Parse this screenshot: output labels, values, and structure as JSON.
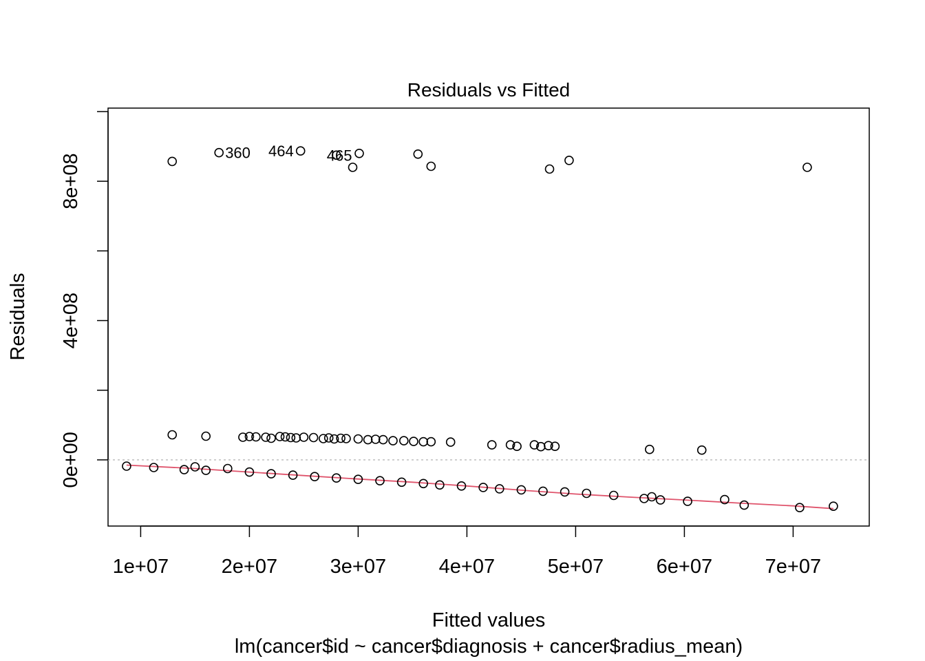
{
  "chart_data": {
    "type": "scatter",
    "title": "Residuals vs Fitted",
    "xlabel": "Fitted values",
    "ylabel": "Residuals",
    "subtitle": "lm(cancer$id ~ cancer$diagnosis + cancer$radius_mean)",
    "xlim": [
      7000000,
      77000000
    ],
    "ylim": [
      -190000000,
      1010000000
    ],
    "x_ticks": [
      10000000,
      20000000,
      30000000,
      40000000,
      50000000,
      60000000,
      70000000
    ],
    "x_tick_labels": [
      "1e+07",
      "2e+07",
      "3e+07",
      "4e+07",
      "5e+07",
      "6e+07",
      "7e+07"
    ],
    "y_ticks": [
      0,
      200000000,
      400000000,
      600000000,
      800000000,
      1000000000
    ],
    "y_tick_labels": [
      "0e+00",
      "",
      "4e+08",
      "",
      "8e+08",
      ""
    ],
    "reference_line_y": 0,
    "outlier_points": [
      {
        "x": 12900000,
        "y": 857000000
      },
      {
        "x": 17200000,
        "y": 882000000,
        "label": "360"
      },
      {
        "x": 24700000,
        "y": 887000000,
        "label": "464"
      },
      {
        "x": 28000000,
        "y": 875000000,
        "label": "465"
      },
      {
        "x": 29500000,
        "y": 840000000
      },
      {
        "x": 30100000,
        "y": 880000000
      },
      {
        "x": 35500000,
        "y": 878000000
      },
      {
        "x": 36700000,
        "y": 843000000
      },
      {
        "x": 47600000,
        "y": 835000000
      },
      {
        "x": 49400000,
        "y": 860000000
      },
      {
        "x": 71300000,
        "y": 840000000
      }
    ],
    "upper_band": [
      {
        "x": 12900000,
        "y": 72000000
      },
      {
        "x": 16000000,
        "y": 68000000
      },
      {
        "x": 19400000,
        "y": 65000000
      },
      {
        "x": 20000000,
        "y": 67000000
      },
      {
        "x": 20600000,
        "y": 66000000
      },
      {
        "x": 21500000,
        "y": 65000000
      },
      {
        "x": 22000000,
        "y": 62000000
      },
      {
        "x": 22800000,
        "y": 67000000
      },
      {
        "x": 23300000,
        "y": 66000000
      },
      {
        "x": 23800000,
        "y": 64000000
      },
      {
        "x": 24300000,
        "y": 63000000
      },
      {
        "x": 25000000,
        "y": 65000000
      },
      {
        "x": 25900000,
        "y": 64000000
      },
      {
        "x": 26800000,
        "y": 61000000
      },
      {
        "x": 27300000,
        "y": 63000000
      },
      {
        "x": 27800000,
        "y": 60000000
      },
      {
        "x": 28400000,
        "y": 62000000
      },
      {
        "x": 28900000,
        "y": 61000000
      },
      {
        "x": 30000000,
        "y": 60000000
      },
      {
        "x": 30900000,
        "y": 58000000
      },
      {
        "x": 31600000,
        "y": 59000000
      },
      {
        "x": 32300000,
        "y": 58000000
      },
      {
        "x": 33200000,
        "y": 55000000
      },
      {
        "x": 34200000,
        "y": 55000000
      },
      {
        "x": 35100000,
        "y": 53000000
      },
      {
        "x": 36000000,
        "y": 52000000
      },
      {
        "x": 36700000,
        "y": 52000000
      },
      {
        "x": 38500000,
        "y": 51000000
      },
      {
        "x": 42300000,
        "y": 43000000
      },
      {
        "x": 44000000,
        "y": 43000000
      },
      {
        "x": 44600000,
        "y": 39000000
      },
      {
        "x": 46200000,
        "y": 43000000
      },
      {
        "x": 46800000,
        "y": 38000000
      },
      {
        "x": 47500000,
        "y": 41000000
      },
      {
        "x": 48100000,
        "y": 39000000
      },
      {
        "x": 56800000,
        "y": 30000000
      },
      {
        "x": 61600000,
        "y": 28000000
      }
    ],
    "lower_band": [
      {
        "x": 8700000,
        "y": -18000000
      },
      {
        "x": 11200000,
        "y": -22000000
      },
      {
        "x": 14000000,
        "y": -28000000
      },
      {
        "x": 15000000,
        "y": -20000000
      },
      {
        "x": 16000000,
        "y": -30000000
      },
      {
        "x": 18000000,
        "y": -25000000
      },
      {
        "x": 20000000,
        "y": -35000000
      },
      {
        "x": 22000000,
        "y": -40000000
      },
      {
        "x": 24000000,
        "y": -44000000
      },
      {
        "x": 26000000,
        "y": -48000000
      },
      {
        "x": 28000000,
        "y": -52000000
      },
      {
        "x": 30000000,
        "y": -56000000
      },
      {
        "x": 32000000,
        "y": -60000000
      },
      {
        "x": 34000000,
        "y": -64000000
      },
      {
        "x": 36000000,
        "y": -68000000
      },
      {
        "x": 37500000,
        "y": -72000000
      },
      {
        "x": 39500000,
        "y": -75000000
      },
      {
        "x": 41500000,
        "y": -79000000
      },
      {
        "x": 43000000,
        "y": -83000000
      },
      {
        "x": 45000000,
        "y": -86000000
      },
      {
        "x": 47000000,
        "y": -90000000
      },
      {
        "x": 49000000,
        "y": -92000000
      },
      {
        "x": 51000000,
        "y": -96000000
      },
      {
        "x": 53500000,
        "y": -102000000
      },
      {
        "x": 56300000,
        "y": -111000000
      },
      {
        "x": 57000000,
        "y": -106000000
      },
      {
        "x": 57800000,
        "y": -115000000
      },
      {
        "x": 60300000,
        "y": -119000000
      },
      {
        "x": 63700000,
        "y": -114000000
      },
      {
        "x": 65500000,
        "y": -130000000
      },
      {
        "x": 70600000,
        "y": -137000000
      },
      {
        "x": 73700000,
        "y": -133000000
      }
    ],
    "smoother": [
      {
        "x": 8700000,
        "y": -15000000
      },
      {
        "x": 15000000,
        "y": -25000000
      },
      {
        "x": 20000000,
        "y": -35000000
      },
      {
        "x": 25000000,
        "y": -45000000
      },
      {
        "x": 30000000,
        "y": -55000000
      },
      {
        "x": 35000000,
        "y": -64000000
      },
      {
        "x": 40000000,
        "y": -75000000
      },
      {
        "x": 45000000,
        "y": -87000000
      },
      {
        "x": 50000000,
        "y": -98000000
      },
      {
        "x": 55000000,
        "y": -107000000
      },
      {
        "x": 60000000,
        "y": -115000000
      },
      {
        "x": 65000000,
        "y": -124000000
      },
      {
        "x": 70000000,
        "y": -132000000
      },
      {
        "x": 73700000,
        "y": -140000000
      }
    ],
    "colors": {
      "points": "#000000",
      "smoother": "#df536b",
      "reference": "#bebebe"
    }
  }
}
